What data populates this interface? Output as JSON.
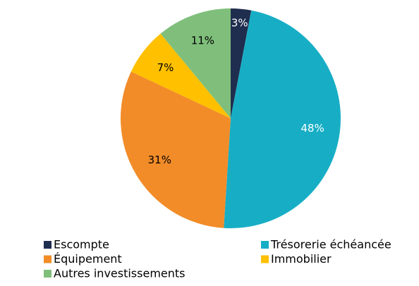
{
  "chart_data": {
    "type": "pie",
    "categories": [
      "Escompte",
      "Trésorerie échéancée",
      "Équipement",
      "Immobilier",
      "Autres investissements"
    ],
    "values": [
      3,
      48,
      31,
      7,
      11
    ],
    "value_labels": [
      "3%",
      "48%",
      "31%",
      "7%",
      "11%"
    ],
    "colors": [
      "#1f2d4e",
      "#17aec5",
      "#f28c28",
      "#ffc000",
      "#7fbf7b"
    ],
    "legend": "bottom"
  }
}
